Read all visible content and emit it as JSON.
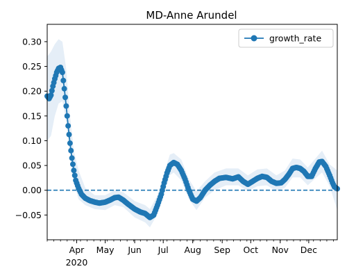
{
  "chart_data": {
    "type": "line",
    "title": "MD-Anne Arundel",
    "xlabel": "",
    "ylabel": "",
    "xlim": [
      "2020-03-01",
      "2020-12-31"
    ],
    "ylim": [
      -0.1,
      0.335
    ],
    "x_ticks": [
      {
        "date": "2020-04-01",
        "label": "Apr"
      },
      {
        "date": "2020-05-01",
        "label": "May"
      },
      {
        "date": "2020-06-01",
        "label": "Jun"
      },
      {
        "date": "2020-07-01",
        "label": "Jul"
      },
      {
        "date": "2020-08-01",
        "label": "Aug"
      },
      {
        "date": "2020-09-01",
        "label": "Sep"
      },
      {
        "date": "2020-10-01",
        "label": "Oct"
      },
      {
        "date": "2020-11-01",
        "label": "Nov"
      },
      {
        "date": "2020-12-01",
        "label": "Dec"
      }
    ],
    "x_year_label": "2020",
    "y_ticks": [
      -0.05,
      0.0,
      0.05,
      0.1,
      0.15,
      0.2,
      0.25,
      0.3
    ],
    "y_tick_labels": [
      "−0.05",
      "0.00",
      "0.05",
      "0.10",
      "0.15",
      "0.20",
      "0.25",
      "0.30"
    ],
    "reference_line": {
      "y": 0.0,
      "style": "dashed"
    },
    "legend": {
      "position": "top-right",
      "entries": [
        "growth_rate"
      ]
    },
    "grid": false,
    "colors": {
      "line": "#1f77b4",
      "band": "#cfe0f1",
      "refline": "#1f77b4"
    },
    "series": [
      {
        "name": "growth_rate",
        "marker": "circle",
        "points": [
          [
            "2020-03-01",
            0.19
          ],
          [
            "2020-03-03",
            0.185
          ],
          [
            "2020-03-05",
            0.192
          ],
          [
            "2020-03-07",
            0.21
          ],
          [
            "2020-03-09",
            0.225
          ],
          [
            "2020-03-11",
            0.238
          ],
          [
            "2020-03-13",
            0.246
          ],
          [
            "2020-03-15",
            0.248
          ],
          [
            "2020-03-17",
            0.238
          ],
          [
            "2020-03-19",
            0.205
          ],
          [
            "2020-03-21",
            0.17
          ],
          [
            "2020-03-23",
            0.13
          ],
          [
            "2020-03-25",
            0.095
          ],
          [
            "2020-03-27",
            0.065
          ],
          [
            "2020-03-29",
            0.04
          ],
          [
            "2020-03-31",
            0.02
          ],
          [
            "2020-04-03",
            0.004
          ],
          [
            "2020-04-06",
            -0.008
          ],
          [
            "2020-04-10",
            -0.016
          ],
          [
            "2020-04-15",
            -0.021
          ],
          [
            "2020-04-20",
            -0.024
          ],
          [
            "2020-04-25",
            -0.026
          ],
          [
            "2020-05-01",
            -0.024
          ],
          [
            "2020-05-06",
            -0.02
          ],
          [
            "2020-05-11",
            -0.015
          ],
          [
            "2020-05-15",
            -0.014
          ],
          [
            "2020-05-20",
            -0.02
          ],
          [
            "2020-05-25",
            -0.028
          ],
          [
            "2020-06-01",
            -0.038
          ],
          [
            "2020-06-07",
            -0.044
          ],
          [
            "2020-06-12",
            -0.047
          ],
          [
            "2020-06-17",
            -0.055
          ],
          [
            "2020-06-21",
            -0.05
          ],
          [
            "2020-06-25",
            -0.03
          ],
          [
            "2020-06-29",
            -0.008
          ],
          [
            "2020-07-02",
            0.015
          ],
          [
            "2020-07-05",
            0.035
          ],
          [
            "2020-07-08",
            0.05
          ],
          [
            "2020-07-12",
            0.056
          ],
          [
            "2020-07-16",
            0.052
          ],
          [
            "2020-07-20",
            0.04
          ],
          [
            "2020-07-24",
            0.022
          ],
          [
            "2020-07-28",
            0.0
          ],
          [
            "2020-08-01",
            -0.018
          ],
          [
            "2020-08-05",
            -0.022
          ],
          [
            "2020-08-09",
            -0.015
          ],
          [
            "2020-08-14",
            0.0
          ],
          [
            "2020-08-19",
            0.01
          ],
          [
            "2020-08-24",
            0.018
          ],
          [
            "2020-08-29",
            0.024
          ],
          [
            "2020-09-05",
            0.026
          ],
          [
            "2020-09-12",
            0.023
          ],
          [
            "2020-09-18",
            0.027
          ],
          [
            "2020-09-23",
            0.018
          ],
          [
            "2020-09-28",
            0.012
          ],
          [
            "2020-10-03",
            0.018
          ],
          [
            "2020-10-08",
            0.024
          ],
          [
            "2020-10-13",
            0.028
          ],
          [
            "2020-10-18",
            0.026
          ],
          [
            "2020-10-23",
            0.018
          ],
          [
            "2020-10-28",
            0.014
          ],
          [
            "2020-11-02",
            0.015
          ],
          [
            "2020-11-06",
            0.022
          ],
          [
            "2020-11-10",
            0.032
          ],
          [
            "2020-11-14",
            0.044
          ],
          [
            "2020-11-18",
            0.046
          ],
          [
            "2020-11-22",
            0.044
          ],
          [
            "2020-11-26",
            0.038
          ],
          [
            "2020-11-30",
            0.028
          ],
          [
            "2020-12-04",
            0.028
          ],
          [
            "2020-12-08",
            0.044
          ],
          [
            "2020-12-12",
            0.057
          ],
          [
            "2020-12-15",
            0.058
          ],
          [
            "2020-12-19",
            0.048
          ],
          [
            "2020-12-23",
            0.03
          ],
          [
            "2020-12-26",
            0.015
          ],
          [
            "2020-12-28",
            0.007
          ],
          [
            "2020-12-31",
            0.003
          ]
        ],
        "band": [
          [
            "2020-03-01",
            0.1,
            0.27
          ],
          [
            "2020-03-05",
            0.11,
            0.28
          ],
          [
            "2020-03-09",
            0.15,
            0.295
          ],
          [
            "2020-03-13",
            0.175,
            0.305
          ],
          [
            "2020-03-17",
            0.18,
            0.3
          ],
          [
            "2020-03-21",
            0.14,
            0.245
          ],
          [
            "2020-03-25",
            0.07,
            0.15
          ],
          [
            "2020-03-29",
            0.015,
            0.08
          ],
          [
            "2020-04-03",
            -0.018,
            0.04
          ],
          [
            "2020-04-10",
            -0.03,
            0.005
          ],
          [
            "2020-04-20",
            -0.038,
            -0.01
          ],
          [
            "2020-05-01",
            -0.04,
            -0.01
          ],
          [
            "2020-05-11",
            -0.03,
            0.0
          ],
          [
            "2020-05-20",
            -0.034,
            -0.004
          ],
          [
            "2020-06-01",
            -0.055,
            -0.022
          ],
          [
            "2020-06-12",
            -0.065,
            -0.03
          ],
          [
            "2020-06-17",
            -0.075,
            -0.038
          ],
          [
            "2020-06-25",
            -0.048,
            -0.01
          ],
          [
            "2020-07-02",
            -0.005,
            0.035
          ],
          [
            "2020-07-08",
            0.03,
            0.072
          ],
          [
            "2020-07-12",
            0.036,
            0.075
          ],
          [
            "2020-07-20",
            0.02,
            0.062
          ],
          [
            "2020-07-28",
            -0.018,
            0.022
          ],
          [
            "2020-08-05",
            -0.04,
            -0.002
          ],
          [
            "2020-08-14",
            -0.015,
            0.018
          ],
          [
            "2020-08-24",
            0.0,
            0.036
          ],
          [
            "2020-09-05",
            0.01,
            0.044
          ],
          [
            "2020-09-18",
            0.01,
            0.044
          ],
          [
            "2020-09-28",
            -0.002,
            0.03
          ],
          [
            "2020-10-08",
            0.008,
            0.042
          ],
          [
            "2020-10-18",
            0.01,
            0.044
          ],
          [
            "2020-10-28",
            -0.002,
            0.03
          ],
          [
            "2020-11-06",
            0.005,
            0.04
          ],
          [
            "2020-11-14",
            0.026,
            0.064
          ],
          [
            "2020-11-22",
            0.026,
            0.062
          ],
          [
            "2020-11-30",
            0.01,
            0.046
          ],
          [
            "2020-12-08",
            0.024,
            0.064
          ],
          [
            "2020-12-15",
            0.036,
            0.08
          ],
          [
            "2020-12-23",
            0.008,
            0.052
          ],
          [
            "2020-12-31",
            -0.04,
            0.04
          ]
        ]
      }
    ]
  }
}
